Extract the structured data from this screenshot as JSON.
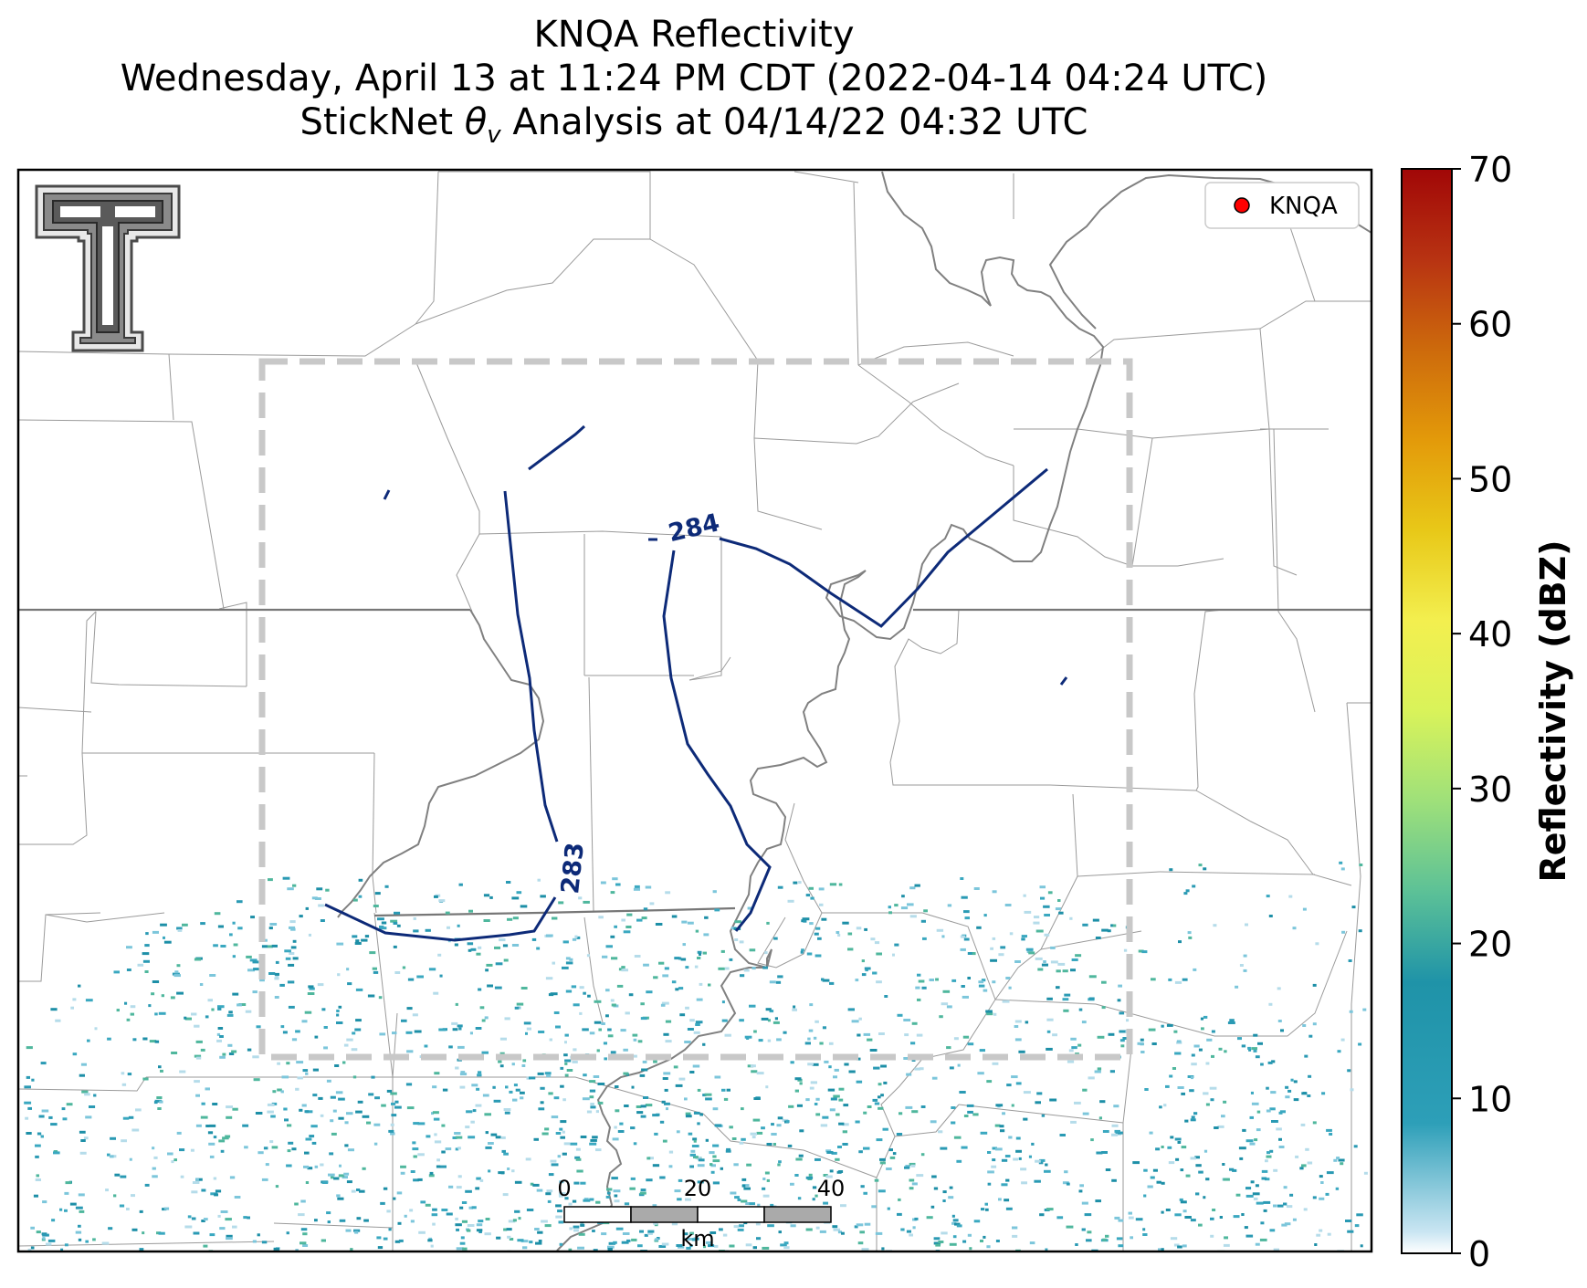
{
  "title": {
    "line1": "KNQA Reflectivity",
    "line2": "Wednesday, April 13 at 11:24 PM CDT (2022-04-14 04:24 UTC)",
    "line3_prefix": "StickNet ",
    "line3_theta": "θ",
    "line3_sub": "v",
    "line3_suffix": " Analysis at 04/14/22 04:32 UTC"
  },
  "legend": {
    "label": "KNQA",
    "marker_color": "#ff0000"
  },
  "contours": [
    {
      "label": "283",
      "color": "#0d2a78"
    },
    {
      "label": "284",
      "color": "#0d2a78"
    }
  ],
  "scalebar": {
    "ticks": [
      "0",
      "20",
      "40"
    ],
    "unit": "km"
  },
  "colorbar": {
    "label": "Reflectivity (dBZ)",
    "min": 0,
    "max": 70,
    "ticks": [
      "0",
      "10",
      "20",
      "30",
      "40",
      "50",
      "60",
      "70"
    ],
    "colors": [
      "#ffffff",
      "#c9e5f2",
      "#2d9fb8",
      "#1f93a8",
      "#5cc197",
      "#9ee07a",
      "#d9f35a",
      "#f3ef4f",
      "#e8c818",
      "#e39a0a",
      "#cd6a0c",
      "#b83312",
      "#a10707"
    ]
  },
  "logo": {
    "icon": "texas-tech-double-t-logo"
  },
  "colors": {
    "state_border": "#777777",
    "county_border": "#9a9a9a",
    "river": "#808080",
    "domain_box": "#c8c8c8",
    "radar_echo": "#2a9ab4"
  }
}
